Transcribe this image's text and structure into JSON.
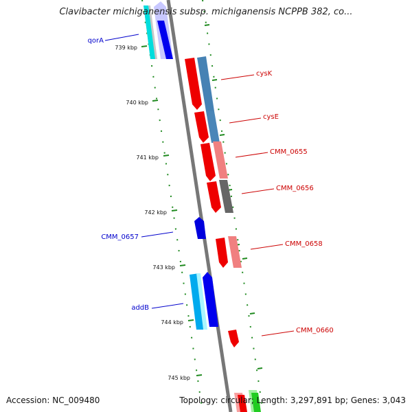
{
  "title": "Clavibacter michiganensis subsp. michiganensis NCPPB 382, co...",
  "footer": {
    "accession_label": "Accession:",
    "accession": "NC_009480",
    "topology_text": "Topology: circular; Length: 3,297,891 bp; Genes: 3,043"
  },
  "colors": {
    "backbone": "#8a8a8a",
    "tick": "#1f8a1f",
    "forward_label": "#0000cc",
    "reverse_label": "#cc0000"
  },
  "scale": {
    "unit": "kbp",
    "labels": [
      "739 kbp",
      "740 kbp",
      "741 kbp",
      "742 kbp",
      "743 kbp",
      "744 kbp",
      "745 kbp"
    ]
  },
  "gene_labels": [
    {
      "name": "qorA",
      "strand": "forward"
    },
    {
      "name": "cysK",
      "strand": "reverse"
    },
    {
      "name": "cysE",
      "strand": "reverse"
    },
    {
      "name": "CMM_0655",
      "strand": "reverse"
    },
    {
      "name": "CMM_0656",
      "strand": "reverse"
    },
    {
      "name": "CMM_0657",
      "strand": "forward"
    },
    {
      "name": "CMM_0658",
      "strand": "reverse"
    },
    {
      "name": "addB",
      "strand": "forward"
    },
    {
      "name": "CMM_0660",
      "strand": "reverse"
    }
  ]
}
